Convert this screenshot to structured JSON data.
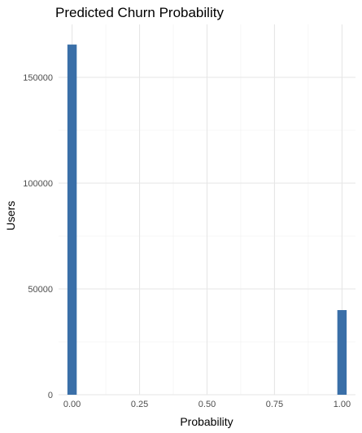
{
  "chart_data": {
    "type": "bar",
    "title": "Predicted Churn Probability",
    "xlabel": "Probability",
    "ylabel": "Users",
    "xlim": [
      -0.05,
      1.05
    ],
    "ylim": [
      0,
      175000
    ],
    "x_ticks": [
      0.0,
      0.25,
      0.5,
      0.75,
      1.0
    ],
    "x_tick_labels": [
      "0.00",
      "0.25",
      "0.50",
      "0.75",
      "1.00"
    ],
    "y_ticks": [
      0,
      50000,
      100000,
      150000
    ],
    "y_tick_labels": [
      "0",
      "50000",
      "100000",
      "150000"
    ],
    "bin_width": 0.0345,
    "bins": [
      {
        "x": 0.0,
        "count": 165500
      },
      {
        "x": 1.0,
        "count": 40000
      }
    ],
    "bar_color": "#3a6fa8",
    "grid": true,
    "legend": "none"
  }
}
